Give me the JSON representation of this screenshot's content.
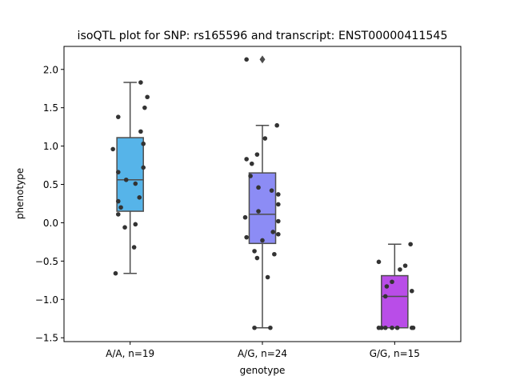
{
  "chart_data": {
    "type": "box",
    "title": "isoQTL plot for SNP: rs165596 and transcript: ENST00000411545",
    "xlabel": "genotype",
    "ylabel": "phenotype",
    "ylim": [
      -1.55,
      2.3
    ],
    "yticks": [
      -1.5,
      -1.0,
      -0.5,
      0.0,
      0.5,
      1.0,
      1.5,
      2.0
    ],
    "ytick_labels": [
      "−1.5",
      "−1.0",
      "−0.5",
      "0.0",
      "0.5",
      "1.0",
      "1.5",
      "2.0"
    ],
    "grid": false,
    "categories": [
      "A/A, n=19",
      "A/G, n=24",
      "G/G, n=15"
    ],
    "colors": [
      "#56b4e9",
      "#8c8cf5",
      "#b94de8"
    ],
    "boxes": [
      {
        "q1": 0.15,
        "median": 0.56,
        "q3": 1.11,
        "whisker_low": -0.66,
        "whisker_high": 1.83,
        "fliers": []
      },
      {
        "q1": -0.27,
        "median": 0.11,
        "q3": 0.65,
        "whisker_low": -1.37,
        "whisker_high": 1.27,
        "fliers": [
          2.13
        ]
      },
      {
        "q1": -1.37,
        "median": -0.96,
        "q3": -0.69,
        "whisker_low": -1.37,
        "whisker_high": -0.28,
        "fliers": []
      }
    ],
    "points": [
      [
        {
          "o": 0.08,
          "y": 1.83
        },
        {
          "o": 0.13,
          "y": 1.64
        },
        {
          "o": 0.11,
          "y": 1.5
        },
        {
          "o": -0.09,
          "y": 1.38
        },
        {
          "o": 0.08,
          "y": 1.19
        },
        {
          "o": 0.1,
          "y": 1.03
        },
        {
          "o": -0.13,
          "y": 0.96
        },
        {
          "o": 0.1,
          "y": 0.72
        },
        {
          "o": -0.09,
          "y": 0.66
        },
        {
          "o": -0.03,
          "y": 0.56
        },
        {
          "o": 0.04,
          "y": 0.51
        },
        {
          "o": 0.07,
          "y": 0.33
        },
        {
          "o": -0.09,
          "y": 0.28
        },
        {
          "o": -0.07,
          "y": 0.2
        },
        {
          "o": -0.09,
          "y": 0.11
        },
        {
          "o": 0.04,
          "y": -0.02
        },
        {
          "o": -0.04,
          "y": -0.06
        },
        {
          "o": 0.03,
          "y": -0.32
        },
        {
          "o": -0.11,
          "y": -0.66
        }
      ],
      [
        {
          "o": -0.12,
          "y": 2.13
        },
        {
          "o": 0.11,
          "y": 1.27
        },
        {
          "o": 0.02,
          "y": 1.1
        },
        {
          "o": -0.04,
          "y": 0.89
        },
        {
          "o": -0.12,
          "y": 0.83
        },
        {
          "o": -0.08,
          "y": 0.77
        },
        {
          "o": -0.09,
          "y": 0.61
        },
        {
          "o": -0.03,
          "y": 0.46
        },
        {
          "o": 0.07,
          "y": 0.42
        },
        {
          "o": 0.12,
          "y": 0.37
        },
        {
          "o": 0.12,
          "y": 0.24
        },
        {
          "o": -0.03,
          "y": 0.15
        },
        {
          "o": -0.13,
          "y": 0.07
        },
        {
          "o": 0.12,
          "y": 0.02
        },
        {
          "o": 0.08,
          "y": -0.12
        },
        {
          "o": 0.12,
          "y": -0.15
        },
        {
          "o": -0.12,
          "y": -0.19
        },
        {
          "o": 0.0,
          "y": -0.23
        },
        {
          "o": -0.06,
          "y": -0.37
        },
        {
          "o": 0.09,
          "y": -0.41
        },
        {
          "o": -0.04,
          "y": -0.46
        },
        {
          "o": 0.04,
          "y": -0.71
        },
        {
          "o": -0.06,
          "y": -1.37
        },
        {
          "o": 0.06,
          "y": -1.37
        }
      ],
      [
        {
          "o": 0.12,
          "y": -0.28
        },
        {
          "o": -0.12,
          "y": -0.51
        },
        {
          "o": 0.08,
          "y": -0.56
        },
        {
          "o": 0.04,
          "y": -0.61
        },
        {
          "o": -0.02,
          "y": -0.77
        },
        {
          "o": -0.06,
          "y": -0.83
        },
        {
          "o": 0.13,
          "y": -0.89
        },
        {
          "o": -0.07,
          "y": -0.96
        },
        {
          "o": -0.12,
          "y": -1.37
        },
        {
          "o": -0.1,
          "y": -1.37
        },
        {
          "o": -0.07,
          "y": -1.37
        },
        {
          "o": -0.02,
          "y": -1.37
        },
        {
          "o": 0.02,
          "y": -1.37
        },
        {
          "o": 0.13,
          "y": -1.37
        },
        {
          "o": 0.14,
          "y": -1.37
        }
      ]
    ]
  }
}
